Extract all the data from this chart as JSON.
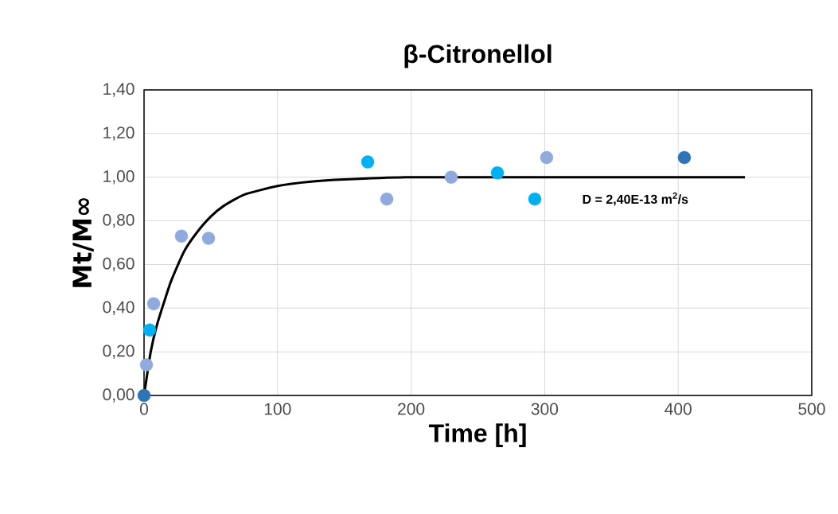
{
  "chart_data": {
    "type": "scatter",
    "title": "β-Citronellol",
    "xlabel": "Time  [h]",
    "ylabel": "Mt/M∞",
    "xlim": [
      0,
      500
    ],
    "xticks": [
      0,
      100,
      200,
      300,
      400,
      500
    ],
    "ylim": [
      0,
      1.4
    ],
    "yticks": [
      {
        "value": 0,
        "label": "0,00"
      },
      {
        "value": 0.2,
        "label": "0,20"
      },
      {
        "value": 0.4,
        "label": "0,40"
      },
      {
        "value": 0.6,
        "label": "0,60"
      },
      {
        "value": 0.8,
        "label": "0,80"
      },
      {
        "value": 1.0,
        "label": "1,00"
      },
      {
        "value": 1.2,
        "label": "1,20"
      },
      {
        "value": 1.4,
        "label": "1,40"
      }
    ],
    "grid": true,
    "marker": "circle",
    "annotations": [
      "D = 2,40E-13 m$^{2}$/s"
    ],
    "series": [
      {
        "color": "#8faadc",
        "x": [
          1.8,
          7.2,
          28,
          48.3,
          181.8,
          230,
          301.5
        ],
        "values": [
          0.14,
          0.42,
          0.73,
          0.72,
          0.9,
          1.0,
          1.09
        ]
      },
      {
        "color": "#00b0f0",
        "x": [
          4.2,
          167.5,
          264.6,
          292.6
        ],
        "values": [
          0.3,
          1.07,
          1.02,
          0.9
        ]
      },
      {
        "color": "#2e75b6",
        "x": [
          0,
          404.6
        ],
        "values": [
          0,
          1.09
        ]
      },
      {
        "type": "line",
        "marker": "none",
        "color": "#000000",
        "x": [
          0,
          5,
          10,
          20,
          30,
          40,
          50,
          60,
          75,
          100,
          125,
          150,
          200,
          300,
          450
        ],
        "values": [
          0,
          0.2,
          0.33,
          0.52,
          0.66,
          0.75,
          0.82,
          0.87,
          0.92,
          0.96,
          0.98,
          0.99,
          1.0,
          1.0,
          1.0
        ]
      }
    ]
  }
}
